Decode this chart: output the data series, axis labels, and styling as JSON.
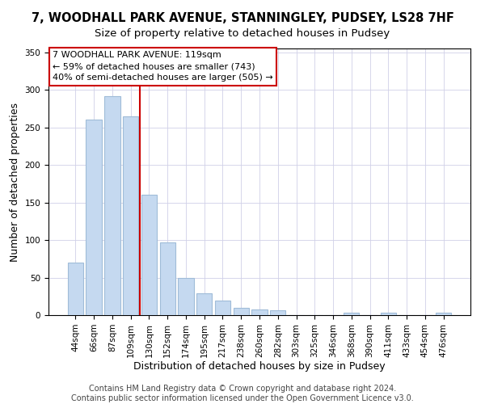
{
  "title": "7, WOODHALL PARK AVENUE, STANNINGLEY, PUDSEY, LS28 7HF",
  "subtitle": "Size of property relative to detached houses in Pudsey",
  "xlabel": "Distribution of detached houses by size in Pudsey",
  "ylabel": "Number of detached properties",
  "bar_labels": [
    "44sqm",
    "66sqm",
    "87sqm",
    "109sqm",
    "130sqm",
    "152sqm",
    "174sqm",
    "195sqm",
    "217sqm",
    "238sqm",
    "260sqm",
    "282sqm",
    "303sqm",
    "325sqm",
    "346sqm",
    "368sqm",
    "390sqm",
    "411sqm",
    "433sqm",
    "454sqm",
    "476sqm"
  ],
  "bar_values": [
    70,
    260,
    292,
    265,
    160,
    97,
    49,
    29,
    19,
    10,
    7,
    6,
    0,
    0,
    0,
    3,
    0,
    3,
    0,
    0,
    3
  ],
  "bar_color": "#c5d9f0",
  "bar_edge_color": "#a0bcd8",
  "vline_x": 3.5,
  "vline_color": "#cc0000",
  "annotation_text": "7 WOODHALL PARK AVENUE: 119sqm\n← 59% of detached houses are smaller (743)\n40% of semi-detached houses are larger (505) →",
  "annotation_box_color": "#ffffff",
  "annotation_box_edge": "#cc0000",
  "ylim": [
    0,
    355
  ],
  "yticks": [
    0,
    50,
    100,
    150,
    200,
    250,
    300,
    350
  ],
  "footer_text": "Contains HM Land Registry data © Crown copyright and database right 2024.\nContains public sector information licensed under the Open Government Licence v3.0.",
  "title_fontsize": 10.5,
  "subtitle_fontsize": 9.5,
  "axis_label_fontsize": 9,
  "tick_fontsize": 7.5,
  "annotation_fontsize": 8,
  "footer_fontsize": 7
}
